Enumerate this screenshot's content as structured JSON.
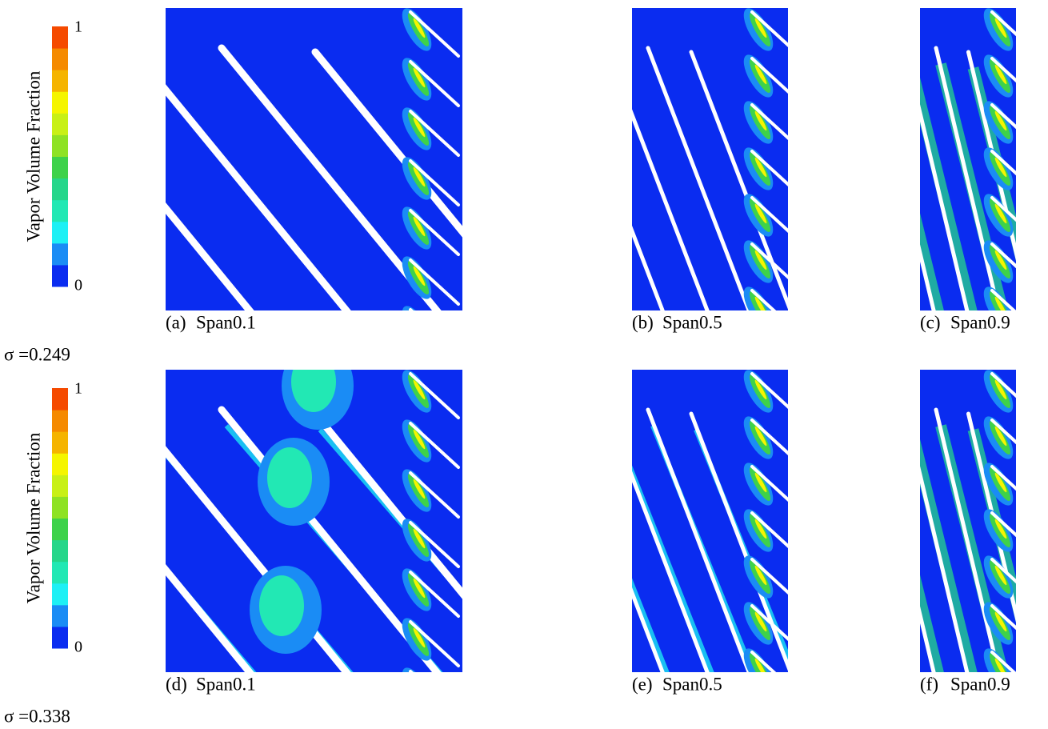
{
  "rows": [
    {
      "colorbar": {
        "title": "Vapor Volume Fraction",
        "max": "1",
        "min": "0"
      },
      "panels": [
        {
          "label": "(a)",
          "caption": "Span0.1"
        },
        {
          "label": "(b)",
          "caption": "Span0.5"
        },
        {
          "label": "(c)",
          "caption": "Span0.9"
        }
      ],
      "sigma": "σ =0.249"
    },
    {
      "colorbar": {
        "title": "Vapor Volume Fraction",
        "max": "1",
        "min": "0"
      },
      "panels": [
        {
          "label": "(d)",
          "caption": "Span0.1"
        },
        {
          "label": "(e)",
          "caption": "Span0.5"
        },
        {
          "label": "(f)",
          "caption": "Span0.9"
        }
      ],
      "sigma": "σ =0.338"
    }
  ]
}
